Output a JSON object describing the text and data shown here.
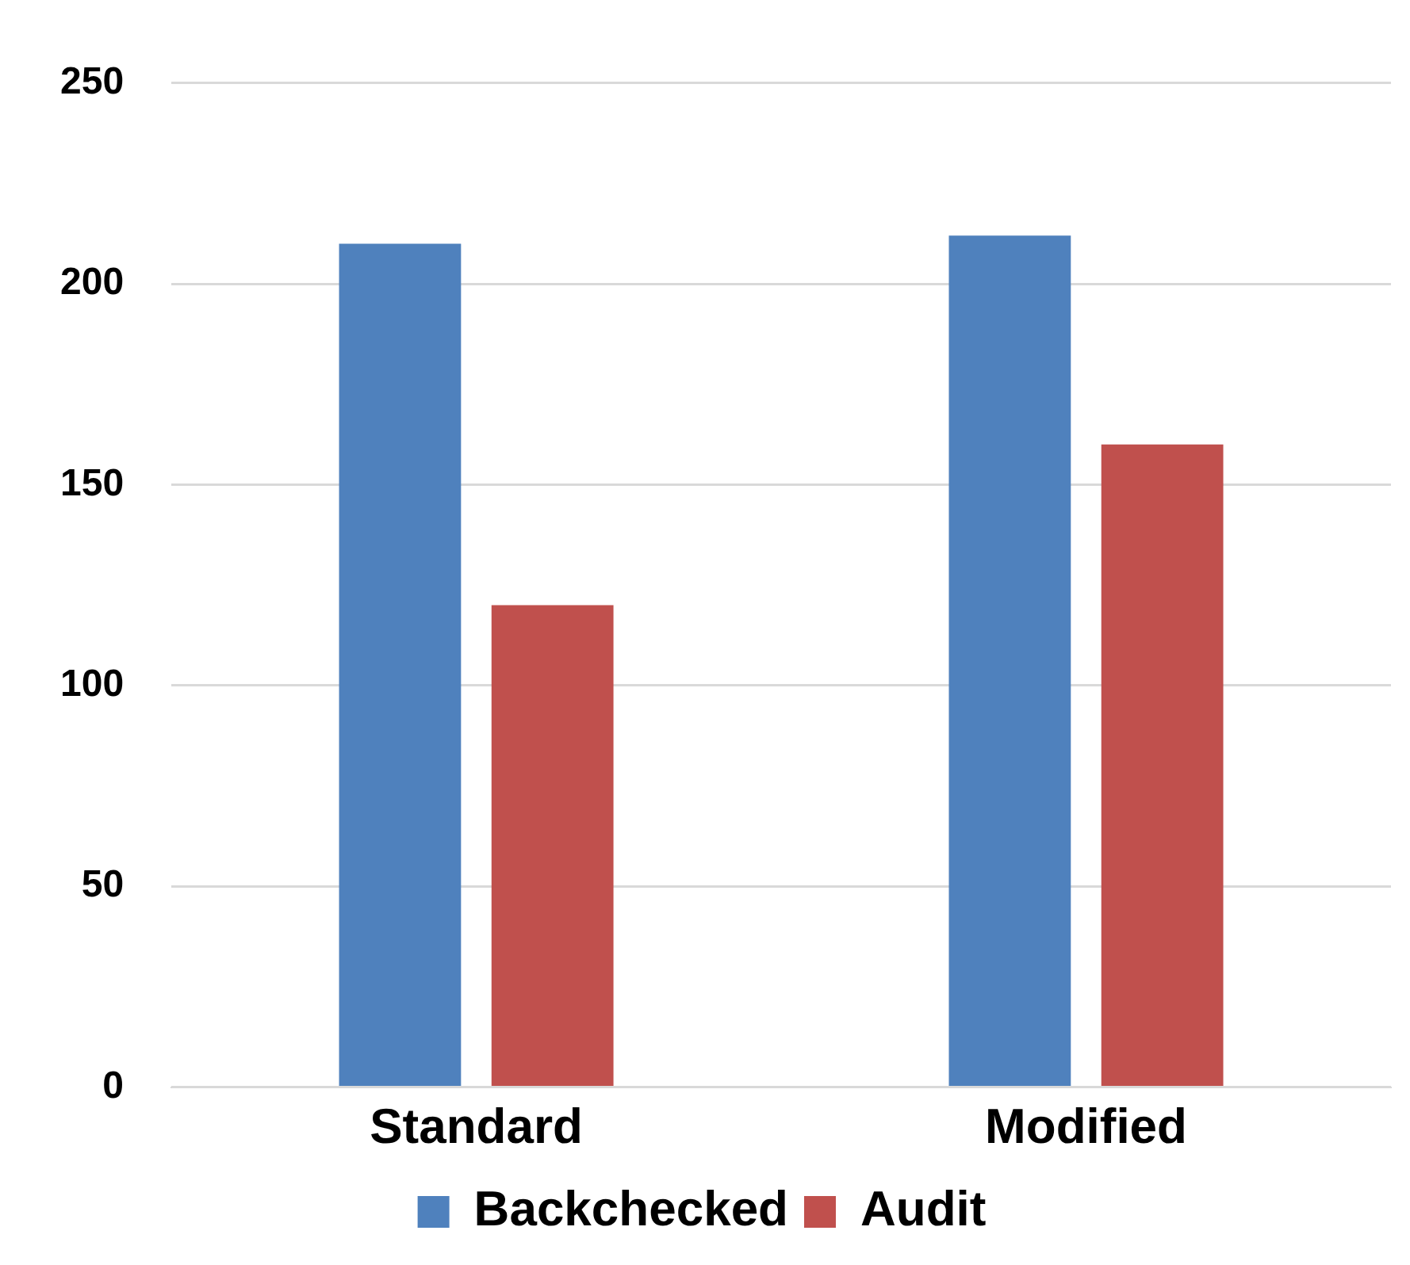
{
  "chart_data": {
    "type": "bar",
    "categories": [
      "Standard",
      "Modified"
    ],
    "series": [
      {
        "name": "Backchecked",
        "color": "#4f81bd",
        "values": [
          210,
          212
        ]
      },
      {
        "name": "Audit",
        "color": "#c0504d",
        "values": [
          120,
          160
        ]
      }
    ],
    "ylim": [
      0,
      250
    ],
    "yticks": [
      0,
      50,
      100,
      150,
      200,
      250
    ],
    "grid": "y",
    "legend": "bottom"
  }
}
